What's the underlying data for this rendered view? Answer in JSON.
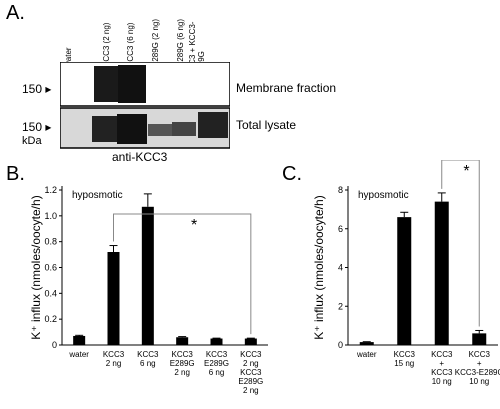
{
  "panelA": {
    "letter": "A.",
    "lanes": [
      "water",
      "KCC3 (2 ng)",
      "KCC3 (6 ng)",
      "E289G (2 ng)",
      "E289G (6 ng)",
      "KCC3 + KCC3-E289G"
    ],
    "blots": [
      {
        "label": "Membrane fraction",
        "mw": "150"
      },
      {
        "label": "Total lysate",
        "mw": "150"
      }
    ],
    "mw_unit": "kDa",
    "antibody": "anti-KCC3"
  },
  "chart_data": [
    {
      "type": "bar",
      "panel": "B.",
      "annotation": "hyposmotic",
      "ylabel": "K⁺ influx (nmoles/oocyte/h)",
      "ylim": [
        0,
        1.2
      ],
      "yticks": [
        "0",
        "0.2",
        "0.4",
        "0.6",
        "0.8",
        "1.0",
        "1.2"
      ],
      "categories": [
        [
          "water"
        ],
        [
          "KCC3",
          "2 ng"
        ],
        [
          "KCC3",
          "6 ng"
        ],
        [
          "KCC3",
          "E289G",
          "2 ng"
        ],
        [
          "KCC3",
          "E289G",
          "6 ng"
        ],
        [
          "KCC3",
          "2 ng",
          "KCC3",
          "E289G",
          "2 ng"
        ]
      ],
      "values": [
        0.07,
        0.72,
        1.07,
        0.06,
        0.05,
        0.05
      ],
      "errors": [
        0.005,
        0.05,
        0.1,
        0.005,
        0.003,
        0.003
      ],
      "significance": {
        "label": "*",
        "from": 1,
        "to": 5
      }
    },
    {
      "type": "bar",
      "panel": "C.",
      "annotation": "hyposmotic",
      "ylabel": "K⁺ influx (nmoles/oocyte/h)",
      "ylim": [
        0,
        8
      ],
      "yticks": [
        "0",
        "2",
        "4",
        "6",
        "8"
      ],
      "categories": [
        [
          "water"
        ],
        [
          "KCC3",
          "15 ng"
        ],
        [
          "KCC3",
          "+",
          "KCC3",
          "10 ng"
        ],
        [
          "KCC3",
          "+",
          "KCC3-E289G",
          "10 ng"
        ]
      ],
      "values": [
        0.15,
        6.6,
        7.4,
        0.6
      ],
      "errors": [
        0.02,
        0.25,
        0.45,
        0.15
      ],
      "significance": {
        "label": "*",
        "from": 2,
        "to": 3
      }
    }
  ]
}
